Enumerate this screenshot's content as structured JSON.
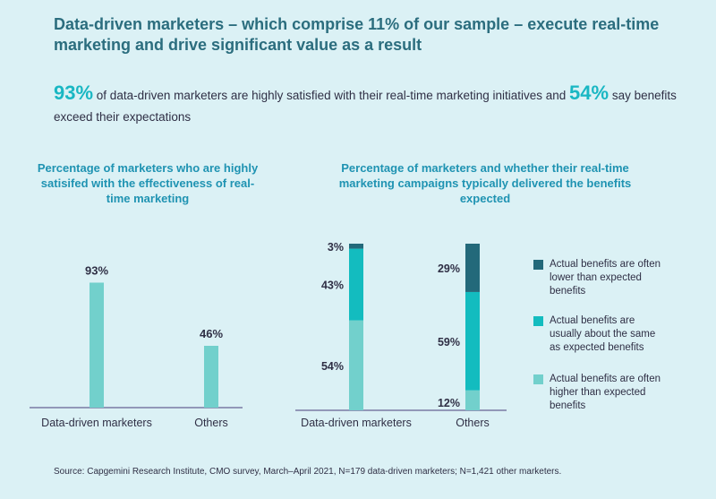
{
  "headline": "Data-driven marketers – which comprise 11% of our sample – execute real-time marketing and drive significant value as a result",
  "lead": {
    "stat1": "93%",
    "text1": " of data-driven marketers are highly satisfied with their real-time marketing initiatives and ",
    "stat2": "54%",
    "text2": " say benefits exceed their expectations"
  },
  "colors": {
    "bar_single": "#72d0cc",
    "lower": "#23697a",
    "same": "#13bcbf",
    "higher": "#72d0cc",
    "axis": "#4a3f7a",
    "label": "#2f2f45"
  },
  "chart_data": [
    {
      "type": "bar",
      "title": "Percentage of marketers who are highly satisifed with the effectiveness of real-time marketing",
      "categories": [
        "Data-driven marketers",
        "Others"
      ],
      "values": [
        93,
        46
      ],
      "value_labels": [
        "93%",
        "46%"
      ],
      "ylim": [
        0,
        100
      ],
      "grid": false
    },
    {
      "type": "bar",
      "stacked": true,
      "title": "Percentage of marketers and whether their real-time marketing campaigns typically delivered the benefits expected",
      "categories": [
        "Data-driven marketers",
        "Others"
      ],
      "series": [
        {
          "name": "Actual benefits are often higher than expected benefits",
          "values": [
            54,
            12
          ],
          "labels": [
            "54%",
            "12%"
          ],
          "color": "#72d0cc"
        },
        {
          "name": "Actual benefits are usually about the same as expected benefits",
          "values": [
            43,
            59
          ],
          "labels": [
            "43%",
            "59%"
          ],
          "color": "#13bcbf"
        },
        {
          "name": "Actual benefits are often lower than expected benefits",
          "values": [
            3,
            29
          ],
          "labels": [
            "3%",
            "29%"
          ],
          "color": "#23697a"
        }
      ],
      "legend_order": [
        2,
        1,
        0
      ],
      "legend_position": "right",
      "ylim": [
        0,
        100
      ],
      "grid": false
    }
  ],
  "source": "Source: Capgemini Research Institute, CMO survey, March–April 2021, N=179 data-driven marketers; N=1,421 other marketers."
}
